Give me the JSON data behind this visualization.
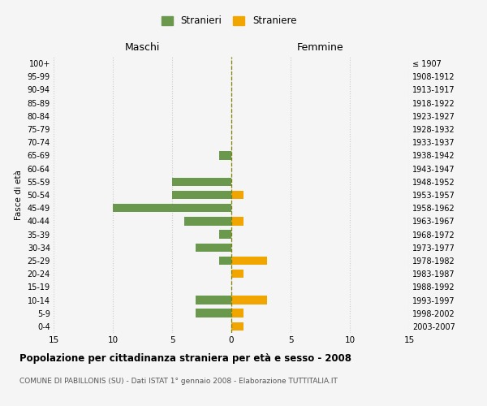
{
  "age_groups": [
    "0-4",
    "5-9",
    "10-14",
    "15-19",
    "20-24",
    "25-29",
    "30-34",
    "35-39",
    "40-44",
    "45-49",
    "50-54",
    "55-59",
    "60-64",
    "65-69",
    "70-74",
    "75-79",
    "80-84",
    "85-89",
    "90-94",
    "95-99",
    "100+"
  ],
  "birth_years": [
    "2003-2007",
    "1998-2002",
    "1993-1997",
    "1988-1992",
    "1983-1987",
    "1978-1982",
    "1973-1977",
    "1968-1972",
    "1963-1967",
    "1958-1962",
    "1953-1957",
    "1948-1952",
    "1943-1947",
    "1938-1942",
    "1933-1937",
    "1928-1932",
    "1923-1927",
    "1918-1922",
    "1913-1917",
    "1908-1912",
    "≤ 1907"
  ],
  "males_stranieri": [
    0,
    3,
    3,
    0,
    0,
    1,
    3,
    1,
    4,
    10,
    5,
    5,
    0,
    1,
    0,
    0,
    0,
    0,
    0,
    0,
    0
  ],
  "females_straniere": [
    1,
    1,
    3,
    0,
    1,
    3,
    0,
    0,
    1,
    0,
    1,
    0,
    0,
    0,
    0,
    0,
    0,
    0,
    0,
    0,
    0
  ],
  "color_males": "#6a994e",
  "color_females": "#f0a500",
  "background_color": "#f5f5f5",
  "grid_color": "#cccccc",
  "title": "Popolazione per cittadinanza straniera per età e sesso - 2008",
  "subtitle": "COMUNE DI PABILLONIS (SU) - Dati ISTAT 1° gennaio 2008 - Elaborazione TUTTITALIA.IT",
  "xlabel_left": "Maschi",
  "xlabel_right": "Femmine",
  "ylabel_left": "Fasce di età",
  "xlim": 15,
  "legend_stranieri": "Stranieri",
  "legend_straniere": "Straniere"
}
